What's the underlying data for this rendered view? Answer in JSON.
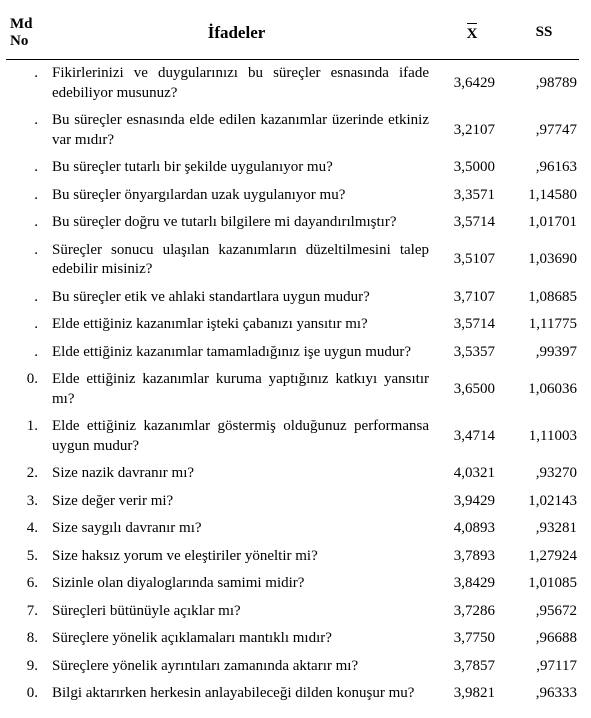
{
  "table": {
    "headers": {
      "md": "Md\nNo",
      "ifade": "İfadeler",
      "x": "X",
      "ss": "SS"
    },
    "rows": [
      {
        "md": ".",
        "ifade": "Fikirlerinizi ve duygularınızı bu süreçler esnasında ifade edebiliyor musunuz?",
        "x": "3,6429",
        "ss": ",98789"
      },
      {
        "md": ".",
        "ifade": "Bu süreçler esnasında elde edilen kazanımlar üzerinde etkiniz var mıdır?",
        "x": "3,2107",
        "ss": ",97747"
      },
      {
        "md": ".",
        "ifade": "Bu süreçler tutarlı bir şekilde uygulanıyor mu?",
        "x": "3,5000",
        "ss": ",96163"
      },
      {
        "md": ".",
        "ifade": "Bu süreçler önyargılardan uzak uygulanıyor mu?",
        "x": "3,3571",
        "ss": "1,14580"
      },
      {
        "md": ".",
        "ifade": "Bu süreçler doğru ve tutarlı bilgilere mi dayandırılmıştır?",
        "x": "3,5714",
        "ss": "1,01701"
      },
      {
        "md": ".",
        "ifade": "Süreçler sonucu ulaşılan kazanımların düzeltilmesini talep edebilir misiniz?",
        "x": "3,5107",
        "ss": "1,03690"
      },
      {
        "md": ".",
        "ifade": "Bu süreçler etik ve ahlaki standartlara uygun mudur?",
        "x": "3,7107",
        "ss": "1,08685"
      },
      {
        "md": ".",
        "ifade": "Elde ettiğiniz kazanımlar işteki çabanızı yansıtır mı?",
        "x": "3,5714",
        "ss": "1,11775"
      },
      {
        "md": ".",
        "ifade": "Elde ettiğiniz kazanımlar tamamladığınız işe uygun mudur?",
        "x": "3,5357",
        "ss": ",99397"
      },
      {
        "md": "0.",
        "ifade": "Elde ettiğiniz kazanımlar kuruma yaptığınız katkıyı yansıtır mı?",
        "x": "3,6500",
        "ss": "1,06036"
      },
      {
        "md": "1.",
        "ifade": "Elde ettiğiniz kazanımlar göstermiş olduğunuz performansa uygun mudur?",
        "x": "3,4714",
        "ss": "1,11003"
      },
      {
        "md": "2.",
        "ifade": "Size nazik davranır mı?",
        "x": "4,0321",
        "ss": ",93270"
      },
      {
        "md": "3.",
        "ifade": "Size değer verir mi?",
        "x": "3,9429",
        "ss": "1,02143"
      },
      {
        "md": "4.",
        "ifade": "Size saygılı davranır mı?",
        "x": "4,0893",
        "ss": ",93281"
      },
      {
        "md": "5.",
        "ifade": "Size haksız yorum ve eleştiriler yöneltir mi?",
        "x": "3,7893",
        "ss": "1,27924"
      },
      {
        "md": "6.",
        "ifade": "Sizinle olan diyaloglarında samimi midir?",
        "x": "3,8429",
        "ss": "1,01085"
      },
      {
        "md": "7.",
        "ifade": "Süreçleri bütünüyle açıklar mı?",
        "x": "3,7286",
        "ss": ",95672"
      },
      {
        "md": "8.",
        "ifade": "Süreçlere yönelik açıklamaları mantıklı mıdır?",
        "x": "3,7750",
        "ss": ",96688"
      },
      {
        "md": "9.",
        "ifade": "Süreçlere yönelik ayrıntıları zamanında aktarır mı?",
        "x": "3,7857",
        "ss": ",97117"
      },
      {
        "md": "0.",
        "ifade": "Bilgi aktarırken herkesin anlayabileceği dilden konuşur mu?",
        "x": "3,9821",
        "ss": ",96333"
      }
    ]
  }
}
